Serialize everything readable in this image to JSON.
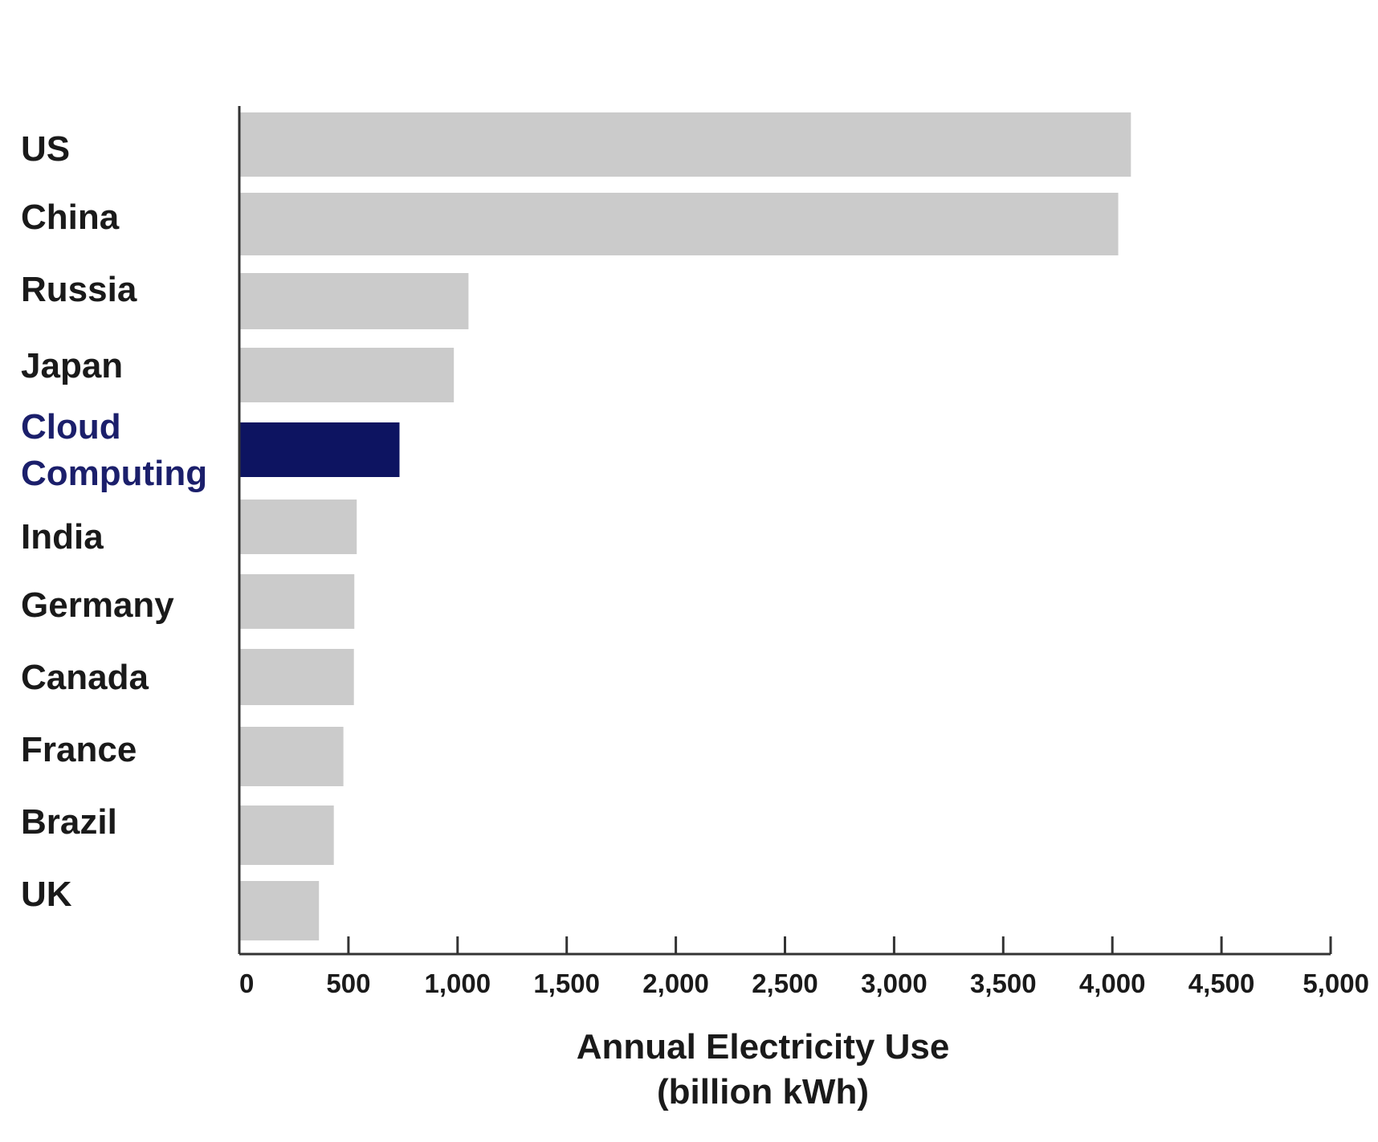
{
  "chart_data": {
    "type": "bar",
    "orientation": "horizontal",
    "categories": [
      "US",
      "China",
      "Russia",
      "Japan",
      "Cloud\nComputing",
      "India",
      "Germany",
      "Canada",
      "France",
      "Brazil",
      "UK"
    ],
    "values": [
      4085,
      4027,
      1050,
      983,
      734,
      538,
      527,
      525,
      477,
      433,
      365
    ],
    "highlight_category": "Cloud\nComputing",
    "xlabel": "Annual Electricity Use",
    "xlabel_unit": "(billion kWh)",
    "xlim": [
      0,
      5000
    ],
    "x_ticks": [
      "0",
      "500",
      "1,000",
      "1,500",
      "2,000",
      "2,500",
      "3,000",
      "3,500",
      "4,000",
      "4,500",
      "5,000"
    ],
    "grid": false,
    "colors": {
      "bar": "#cbcbcb",
      "highlight_bar": "#0d1461",
      "highlight_label": "#1b1f6b",
      "axis": "#333333",
      "text": "#1a1a1a"
    }
  }
}
